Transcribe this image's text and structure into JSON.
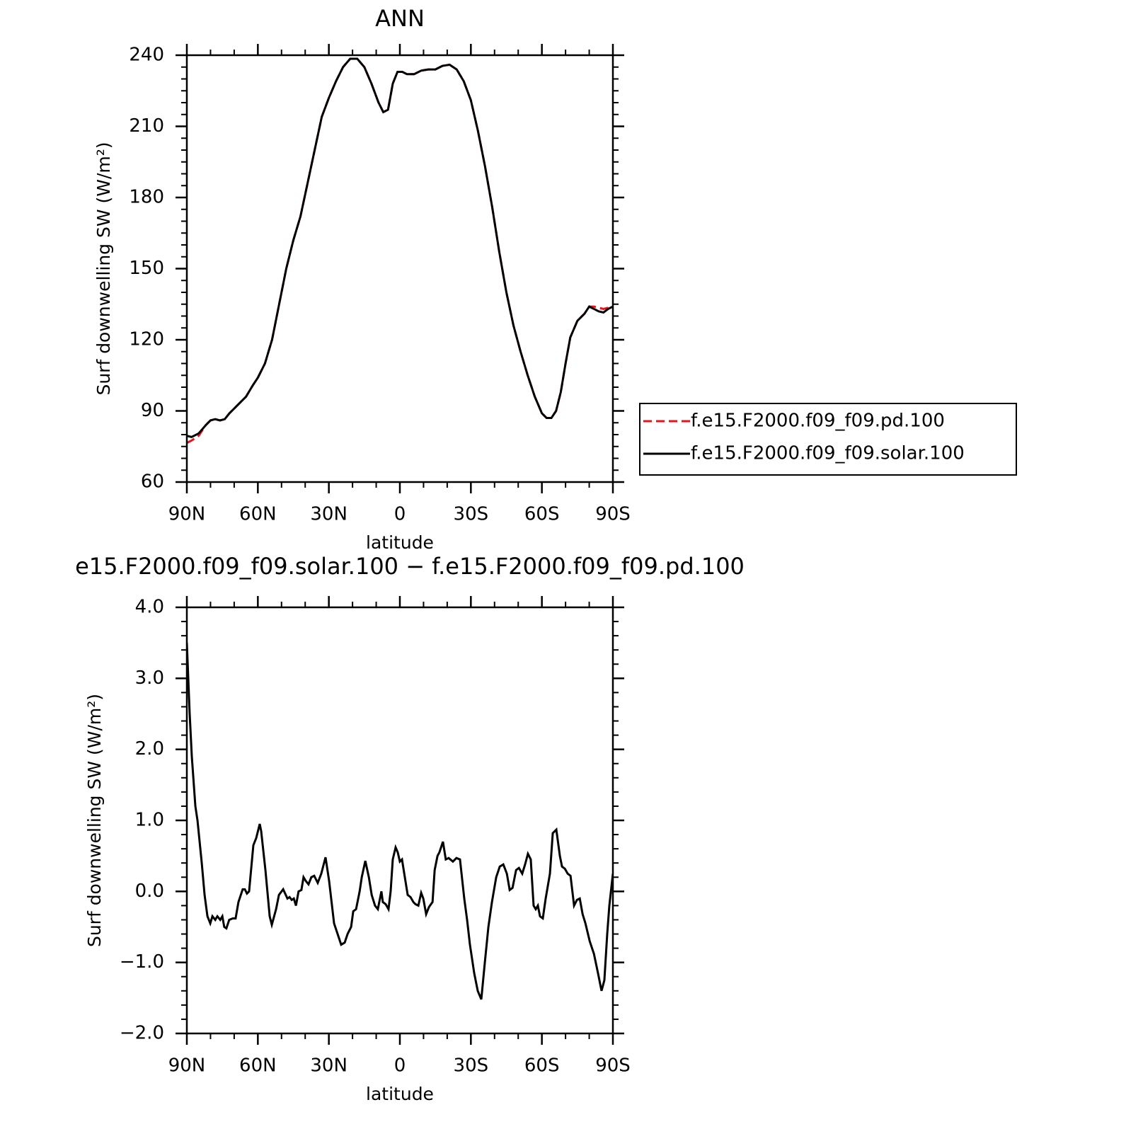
{
  "chart_data": [
    {
      "type": "line",
      "title": "ANN",
      "x_label": "latitude",
      "y_label": "Surf downwelling SW (W/m²)",
      "x": [
        90,
        88,
        85,
        82,
        80,
        78,
        76,
        74,
        72,
        70,
        68,
        65,
        62,
        60,
        57,
        54,
        51,
        48,
        45,
        42,
        39,
        36,
        33,
        30,
        27,
        24,
        21,
        18,
        15,
        12,
        9,
        7,
        5,
        3,
        1,
        -1,
        -3,
        -6,
        -9,
        -12,
        -15,
        -18,
        -21,
        -24,
        -27,
        -30,
        -33,
        -36,
        -39,
        -42,
        -45,
        -48,
        -51,
        -54,
        -57,
        -60,
        -62,
        -64,
        -66,
        -68,
        -70,
        -72,
        -75,
        -78,
        -80,
        -82,
        -84,
        -86,
        -88,
        -90
      ],
      "series": [
        {
          "name": "f.e15.F2000.f09_f09.pd.100",
          "color": "#e8141a",
          "dashed": true,
          "values": [
            76.5,
            77.5,
            79.5,
            84,
            86,
            86.5,
            86,
            86.5,
            89,
            91,
            93,
            96,
            101,
            104,
            110,
            120,
            135,
            150,
            162,
            172,
            186,
            200,
            214,
            222,
            229,
            235,
            238.5,
            238.5,
            235,
            228,
            220,
            216,
            217,
            228,
            233,
            233,
            232,
            232,
            233.5,
            234,
            234,
            235.5,
            236,
            234,
            229,
            221,
            208,
            193,
            176,
            157,
            140,
            126,
            115,
            105,
            96,
            89,
            87,
            87,
            90,
            98,
            110,
            121,
            128,
            131,
            134,
            134,
            133.5,
            133,
            133.5,
            134
          ]
        },
        {
          "name": "f.e15.F2000.f09_f09.solar.100",
          "color": "#000000",
          "dashed": false,
          "values": [
            79.5,
            79,
            80.5,
            84,
            86,
            86.5,
            86,
            86.5,
            89,
            91,
            93,
            96,
            101,
            104,
            110,
            120,
            135,
            150,
            162,
            172,
            186,
            200,
            214,
            222,
            229,
            235,
            238.5,
            238.5,
            235,
            228,
            220,
            216,
            217,
            228,
            233,
            233,
            232,
            232,
            233.5,
            234,
            234,
            235.5,
            236,
            234,
            229,
            221,
            208,
            193,
            176,
            157,
            140,
            126,
            115,
            105,
            96,
            89,
            87,
            87,
            90,
            98,
            110,
            121,
            128,
            131,
            134,
            133,
            132,
            131.5,
            133,
            134
          ]
        }
      ],
      "xlim": [
        90,
        -90
      ],
      "xticks": [
        {
          "value": 90,
          "label": "90N"
        },
        {
          "value": 60,
          "label": "60N"
        },
        {
          "value": 30,
          "label": "30N"
        },
        0,
        {
          "value": -30,
          "label": "30S"
        },
        {
          "value": -60,
          "label": "60S"
        },
        {
          "value": -90,
          "label": "90S"
        }
      ],
      "ylim": [
        60,
        240
      ],
      "yticks": [
        60,
        90,
        120,
        150,
        180,
        210,
        240
      ],
      "legend": "right"
    },
    {
      "type": "line",
      "title": "e15.F2000.f09_f09.solar.100 − f.e15.F2000.f09_f09.pd.100",
      "x_label": "latitude",
      "y_label": "Surf downwelling SW (W/m²)",
      "x": [
        90,
        88.8,
        87.9,
        86.4,
        85.5,
        83.7,
        82.5,
        81.3,
        80.1,
        79.2,
        78.0,
        77.1,
        75.9,
        75.0,
        74.2,
        73.3,
        72.1,
        70.6,
        69.4,
        68.2,
        66.4,
        65.5,
        64.6,
        63.7,
        61.9,
        60.7,
        59.2,
        58.6,
        56.8,
        55.0,
        54.1,
        52.3,
        51.1,
        49.3,
        47.5,
        46.6,
        45.7,
        44.8,
        43.9,
        42.8,
        41.6,
        40.7,
        39.8,
        38.6,
        37.4,
        36.2,
        34.7,
        33.2,
        31.4,
        29.9,
        27.8,
        26.3,
        24.8,
        23.3,
        22.1,
        20.6,
        19.7,
        18.5,
        17.0,
        16.1,
        14.6,
        13.1,
        11.9,
        10.5,
        9.3,
        7.8,
        7.2,
        6.0,
        4.8,
        3.9,
        3.0,
        1.8,
        0.9,
        0,
        -0.9,
        -2.1,
        -3.3,
        -4.5,
        -5.7,
        -6.6,
        -7.8,
        -9.0,
        -9.9,
        -11.1,
        -12.3,
        -13.8,
        -14.7,
        -15.9,
        -16.7,
        -18.2,
        -19.4,
        -20.6,
        -22.4,
        -23.9,
        -25.4,
        -27.2,
        -28.4,
        -29.6,
        -31.4,
        -32.9,
        -34.4,
        -35.9,
        -37.4,
        -38.9,
        -40.7,
        -42.2,
        -43.7,
        -45.2,
        -46.4,
        -47.6,
        -49.1,
        -50.3,
        -51.7,
        -52.9,
        -54.1,
        -55.3,
        -56.5,
        -57.4,
        -58.3,
        -59.2,
        -60.4,
        -61.6,
        -63.4,
        -64.6,
        -66.1,
        -67.6,
        -68.5,
        -69.7,
        -70.9,
        -72.1,
        -73.6,
        -74.8,
        -76.0,
        -77.2,
        -78.4,
        -80.2,
        -82.0,
        -83.7,
        -85.2,
        -86.4,
        -87.6,
        -88.5,
        -90
      ],
      "values": [
        3.5,
        2.5,
        1.9,
        1.2,
        1.0,
        0.4,
        -0.05,
        -0.35,
        -0.45,
        -0.35,
        -0.4,
        -0.35,
        -0.4,
        -0.35,
        -0.5,
        -0.52,
        -0.4,
        -0.38,
        -0.38,
        -0.15,
        0.03,
        0.03,
        -0.03,
        0.0,
        0.65,
        0.75,
        0.95,
        0.85,
        0.3,
        -0.35,
        -0.47,
        -0.25,
        -0.05,
        0.03,
        -0.1,
        -0.08,
        -0.12,
        -0.1,
        -0.2,
        0,
        0.02,
        0.2,
        0.15,
        0.1,
        0.2,
        0.22,
        0.12,
        0.25,
        0.48,
        0.15,
        -0.45,
        -0.6,
        -0.75,
        -0.72,
        -0.6,
        -0.5,
        -0.28,
        -0.25,
        0.0,
        0.2,
        0.43,
        0.2,
        -0.05,
        -0.2,
        -0.25,
        0.0,
        -0.15,
        -0.18,
        -0.25,
        0.0,
        0.45,
        0.62,
        0.55,
        0.42,
        0.45,
        0.2,
        -0.05,
        -0.08,
        -0.15,
        -0.18,
        -0.2,
        -0.02,
        -0.1,
        -0.32,
        -0.22,
        -0.15,
        0.3,
        0.5,
        0.55,
        0.7,
        0.45,
        0.47,
        0.42,
        0.47,
        0.45,
        -0.1,
        -0.4,
        -0.75,
        -1.15,
        -1.4,
        -1.52,
        -1.0,
        -0.5,
        -0.15,
        0.2,
        0.35,
        0.38,
        0.25,
        0.02,
        0.05,
        0.3,
        0.33,
        0.25,
        0.38,
        0.53,
        0.45,
        -0.2,
        -0.25,
        -0.2,
        -0.35,
        -0.38,
        -0.1,
        0.25,
        0.82,
        0.87,
        0.5,
        0.35,
        0.32,
        0.25,
        0.22,
        -0.2,
        -0.12,
        -0.1,
        -0.32,
        -0.45,
        -0.7,
        -0.88,
        -1.15,
        -1.4,
        -1.25,
        -0.6,
        -0.2,
        0.25
      ],
      "color": "#000000",
      "xlim": [
        90,
        -90
      ],
      "xticks": [
        {
          "value": 90,
          "label": "90N"
        },
        {
          "value": 60,
          "label": "60N"
        },
        {
          "value": 30,
          "label": "30N"
        },
        0,
        {
          "value": -30,
          "label": "30S"
        },
        {
          "value": -60,
          "label": "60S"
        },
        {
          "value": -90,
          "label": "90S"
        }
      ],
      "ylim": [
        -2,
        4
      ],
      "yticks": [
        {
          "value": -2,
          "label": "−2.0"
        },
        {
          "value": -1,
          "label": "−1.0"
        },
        {
          "value": 0,
          "label": "0.0"
        },
        {
          "value": 1,
          "label": "1.0"
        },
        {
          "value": 2,
          "label": "2.0"
        },
        {
          "value": 3,
          "label": "3.0"
        },
        {
          "value": 4,
          "label": "4.0"
        }
      ]
    }
  ]
}
